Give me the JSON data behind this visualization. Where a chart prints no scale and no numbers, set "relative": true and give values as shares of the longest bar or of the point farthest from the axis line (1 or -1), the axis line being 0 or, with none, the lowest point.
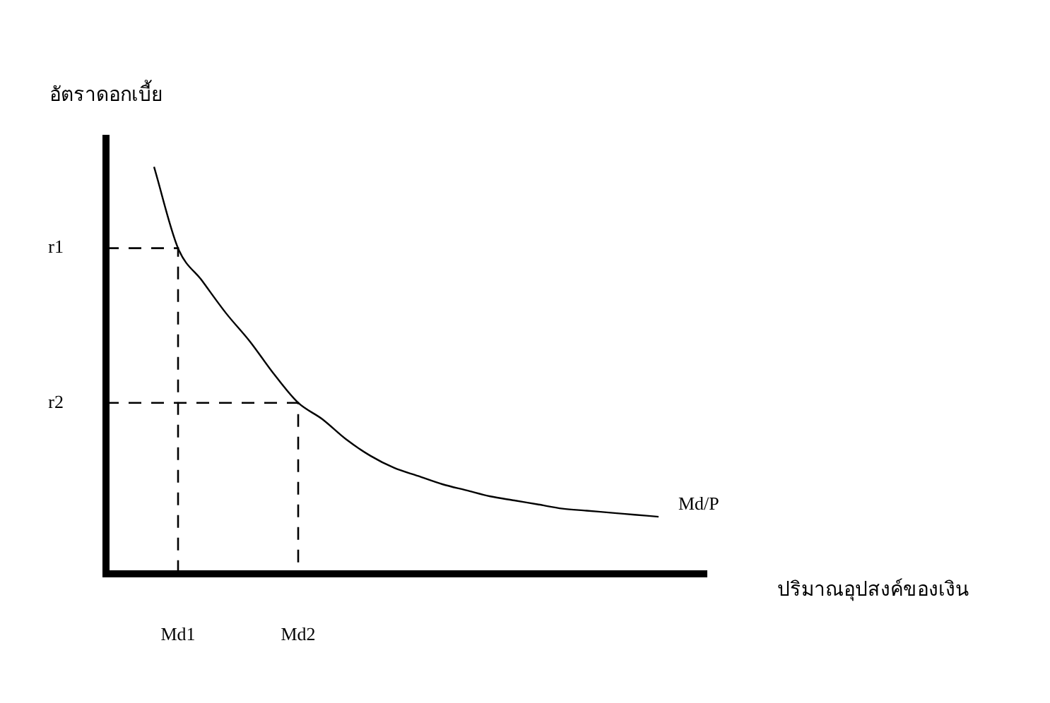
{
  "chart_data": {
    "type": "line",
    "xlabel": "ปริมาณอุปสงค์ของเงิน",
    "ylabel": "อัตราดอกเบี้ย",
    "relative": true,
    "categories": [
      null,
      null,
      null,
      "Md1",
      null,
      null,
      null,
      null,
      "Md2",
      null,
      null,
      null,
      null,
      null,
      null,
      null,
      null,
      null,
      null,
      null,
      null,
      null,
      null,
      null,
      null,
      null
    ],
    "series": [
      {
        "color": "#000000",
        "values": [
          null,
          null,
          1,
          0.8,
          0.72,
          0.64,
          0.57,
          0.49,
          0.42,
          0.38,
          0.33,
          0.29,
          0.26,
          0.24,
          0.22,
          0.205,
          0.19,
          0.18,
          0.17,
          0.16,
          0.155,
          0.15,
          0.145,
          0.14,
          null,
          null
        ]
      }
    ],
    "ref_lines": [
      {
        "axis": "y",
        "value": 0.8,
        "label": "r1",
        "line_style": "dashed",
        "color": "#000000"
      },
      {
        "axis": "y",
        "value": 0.42,
        "label": "r2",
        "line_style": "dashed",
        "color": "#000000"
      }
    ],
    "annotations": [
      "Md/P"
    ],
    "legend": false,
    "marker": "none",
    "line_style": "solid"
  }
}
